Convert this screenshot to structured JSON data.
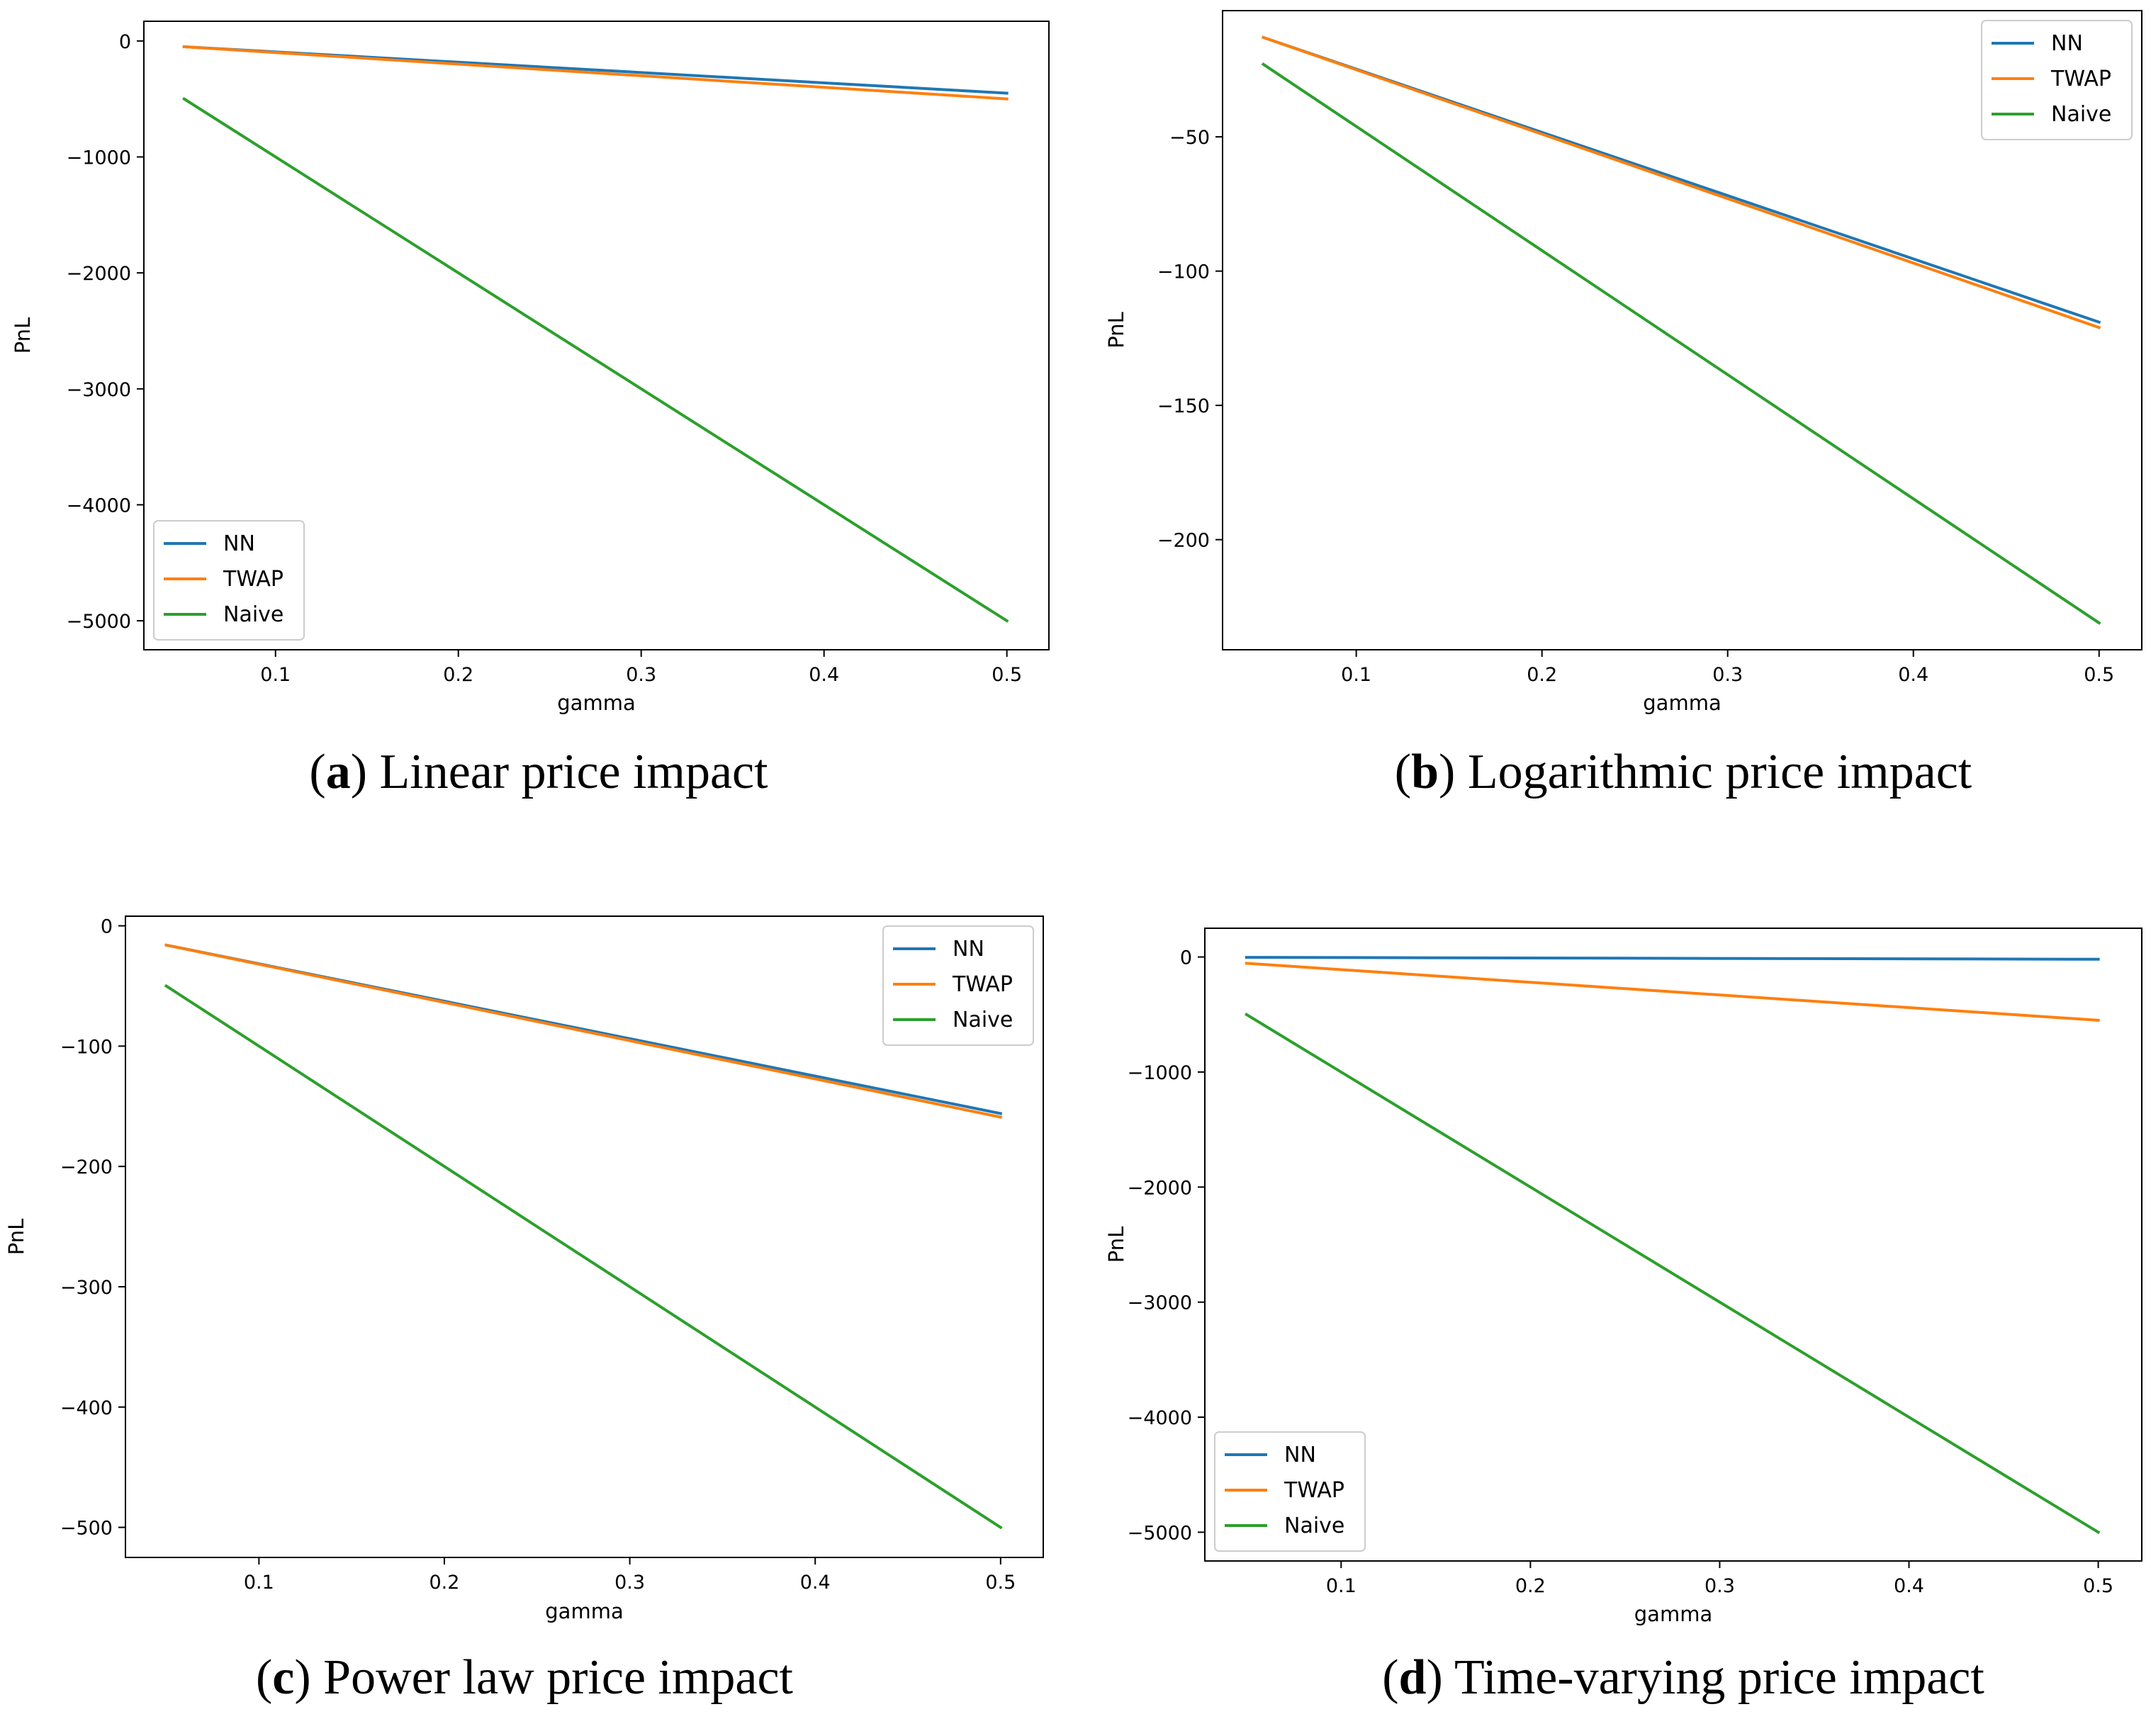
{
  "colors": {
    "NN": "#1f77b4",
    "TWAP": "#ff7f0e",
    "Naive": "#2ca02c"
  },
  "chart_data": [
    {
      "type": "line",
      "caption": {
        "letter": "a",
        "text": "Linear price impact"
      },
      "xlabel": "gamma",
      "ylabel": "PnL",
      "xlim": [
        0.028,
        0.523
      ],
      "ylim": [
        -5250,
        170
      ],
      "xticks": [
        0.1,
        0.2,
        0.3,
        0.4,
        0.5
      ],
      "xtick_labels": [
        "0.1",
        "0.2",
        "0.3",
        "0.4",
        "0.5"
      ],
      "yticks": [
        0,
        -1000,
        -2000,
        -3000,
        -4000,
        -5000
      ],
      "ytick_labels": [
        "0",
        "−1000",
        "−2000",
        "−3000",
        "−4000",
        "−5000"
      ],
      "legend_placement": "lower-left",
      "series": [
        {
          "name": "NN",
          "x": [
            0.05,
            0.5
          ],
          "y": [
            -50,
            -450
          ]
        },
        {
          "name": "TWAP",
          "x": [
            0.05,
            0.5
          ],
          "y": [
            -50,
            -500
          ]
        },
        {
          "name": "Naive",
          "x": [
            0.05,
            0.5
          ],
          "y": [
            -500,
            -5000
          ]
        }
      ]
    },
    {
      "type": "line",
      "caption": {
        "letter": "b",
        "text": "Logarithmic price impact"
      },
      "xlabel": "gamma",
      "ylabel": "PnL",
      "xlim": [
        0.028,
        0.523
      ],
      "ylim": [
        -241,
        -3
      ],
      "xticks": [
        0.1,
        0.2,
        0.3,
        0.4,
        0.5
      ],
      "xtick_labels": [
        "0.1",
        "0.2",
        "0.3",
        "0.4",
        "0.5"
      ],
      "yticks": [
        -50,
        -100,
        -150,
        -200
      ],
      "ytick_labels": [
        "−50",
        "−100",
        "−150",
        "−200"
      ],
      "legend_placement": "upper-right",
      "series": [
        {
          "name": "NN",
          "x": [
            0.05,
            0.5
          ],
          "y": [
            -13,
            -119
          ]
        },
        {
          "name": "TWAP",
          "x": [
            0.05,
            0.5
          ],
          "y": [
            -13,
            -121
          ]
        },
        {
          "name": "Naive",
          "x": [
            0.05,
            0.5
          ],
          "y": [
            -23,
            -231
          ]
        }
      ]
    },
    {
      "type": "line",
      "caption": {
        "letter": "c",
        "text": "Power law price impact"
      },
      "xlabel": "gamma",
      "ylabel": "PnL",
      "xlim": [
        0.028,
        0.523
      ],
      "ylim": [
        -525,
        8
      ],
      "xticks": [
        0.1,
        0.2,
        0.3,
        0.4,
        0.5
      ],
      "xtick_labels": [
        "0.1",
        "0.2",
        "0.3",
        "0.4",
        "0.5"
      ],
      "yticks": [
        0,
        -100,
        -200,
        -300,
        -400,
        -500
      ],
      "ytick_labels": [
        "0",
        "−100",
        "−200",
        "−300",
        "−400",
        "−500"
      ],
      "legend_placement": "upper-right",
      "series": [
        {
          "name": "NN",
          "x": [
            0.05,
            0.5
          ],
          "y": [
            -16,
            -156
          ]
        },
        {
          "name": "TWAP",
          "x": [
            0.05,
            0.5
          ],
          "y": [
            -16,
            -159
          ]
        },
        {
          "name": "Naive",
          "x": [
            0.05,
            0.5
          ],
          "y": [
            -50,
            -500
          ]
        }
      ]
    },
    {
      "type": "line",
      "caption": {
        "letter": "d",
        "text": "Time-varying price impact"
      },
      "xlabel": "gamma",
      "ylabel": "PnL",
      "xlim": [
        0.028,
        0.523
      ],
      "ylim": [
        -5250,
        250
      ],
      "xticks": [
        0.1,
        0.2,
        0.3,
        0.4,
        0.5
      ],
      "xtick_labels": [
        "0.1",
        "0.2",
        "0.3",
        "0.4",
        "0.5"
      ],
      "yticks": [
        0,
        -1000,
        -2000,
        -3000,
        -4000,
        -5000
      ],
      "ytick_labels": [
        "0",
        "−1000",
        "−2000",
        "−3000",
        "−4000",
        "−5000"
      ],
      "legend_placement": "lower-left",
      "series": [
        {
          "name": "NN",
          "x": [
            0.05,
            0.5
          ],
          "y": [
            -3,
            -20
          ]
        },
        {
          "name": "TWAP",
          "x": [
            0.05,
            0.5
          ],
          "y": [
            -55,
            -550
          ]
        },
        {
          "name": "Naive",
          "x": [
            0.05,
            0.5
          ],
          "y": [
            -500,
            -5000
          ]
        }
      ]
    }
  ]
}
